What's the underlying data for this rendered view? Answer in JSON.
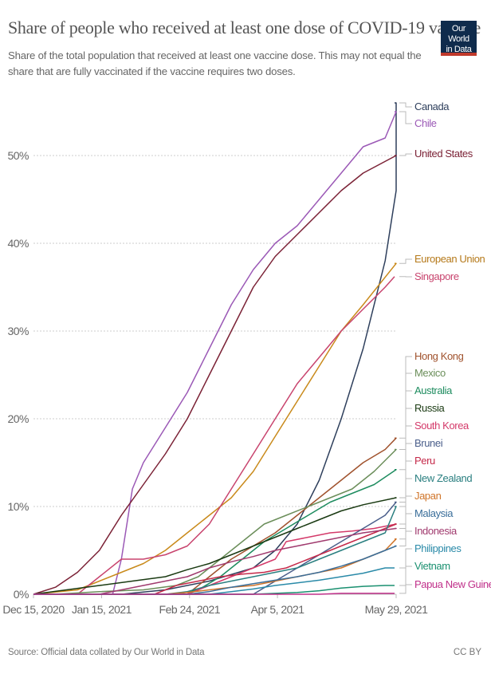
{
  "header": {
    "title": "Share of people who received at least one dose of COVID-19 vaccine",
    "subtitle": "Share of the total population that received at least one vaccine dose. This may not equal the share that are fully vaccinated if the vaccine requires two doses.",
    "logo_line1": "Our World",
    "logo_line2": "in Data"
  },
  "footer": {
    "source": "Source: Official data collated by Our World in Data",
    "license": "CC BY"
  },
  "chart_data": {
    "type": "line",
    "title": "Share of people who received at least one dose of COVID-19 vaccine",
    "xlabel": "",
    "ylabel": "",
    "x_range": [
      "2020-12-15",
      "2021-05-29"
    ],
    "ylim": [
      0,
      56
    ],
    "y_ticks": [
      0,
      10,
      20,
      30,
      40,
      50
    ],
    "y_tick_labels": [
      "0%",
      "10%",
      "20%",
      "30%",
      "40%",
      "50%"
    ],
    "x_ticks": [
      "2020-12-15",
      "2021-01-15",
      "2021-02-24",
      "2021-04-05",
      "2021-05-29"
    ],
    "x_tick_labels": [
      "Dec 15, 2020",
      "Jan 15, 2021",
      "Feb 24, 2021",
      "Apr 5, 2021",
      "May 29, 2021"
    ],
    "grid": "horizontal-dotted",
    "legend": "right-end-labels",
    "series": [
      {
        "name": "Canada",
        "color": "#2e3f5c",
        "points": [
          [
            0,
            0
          ],
          [
            40,
            0
          ],
          [
            60,
            0.5
          ],
          [
            80,
            1.5
          ],
          [
            100,
            3
          ],
          [
            110,
            5
          ],
          [
            120,
            8
          ],
          [
            130,
            13
          ],
          [
            140,
            20
          ],
          [
            150,
            28
          ],
          [
            160,
            38
          ],
          [
            168,
            46
          ],
          [
            175,
            52
          ],
          [
            165.5,
            56
          ]
        ],
        "end": 56
      },
      {
        "name": "Chile",
        "color": "#9b59b6",
        "points": [
          [
            0,
            0
          ],
          [
            36,
            0
          ],
          [
            40,
            4
          ],
          [
            45,
            12
          ],
          [
            50,
            15
          ],
          [
            55,
            17
          ],
          [
            60,
            19
          ],
          [
            70,
            23
          ],
          [
            80,
            28
          ],
          [
            90,
            33
          ],
          [
            100,
            37
          ],
          [
            110,
            40
          ],
          [
            120,
            42
          ],
          [
            130,
            45
          ],
          [
            140,
            48
          ],
          [
            150,
            51
          ],
          [
            160,
            52
          ],
          [
            165,
            55
          ]
        ],
        "end": 55
      },
      {
        "name": "United States",
        "color": "#7b2236",
        "points": [
          [
            0,
            0
          ],
          [
            10,
            0.8
          ],
          [
            20,
            2.5
          ],
          [
            30,
            5
          ],
          [
            40,
            9
          ],
          [
            50,
            12.5
          ],
          [
            60,
            16
          ],
          [
            70,
            20
          ],
          [
            80,
            25
          ],
          [
            90,
            30
          ],
          [
            100,
            35
          ],
          [
            110,
            38.5
          ],
          [
            120,
            41
          ],
          [
            130,
            43.5
          ],
          [
            140,
            46
          ],
          [
            150,
            48
          ],
          [
            165,
            50
          ]
        ],
        "end": 50
      },
      {
        "name": "European Union",
        "color": "#c98a1b",
        "points": [
          [
            0,
            0
          ],
          [
            20,
            0.5
          ],
          [
            30,
            1.5
          ],
          [
            40,
            2.5
          ],
          [
            50,
            3.5
          ],
          [
            60,
            5
          ],
          [
            70,
            7
          ],
          [
            80,
            9
          ],
          [
            90,
            11
          ],
          [
            100,
            14
          ],
          [
            110,
            18
          ],
          [
            120,
            22
          ],
          [
            130,
            26
          ],
          [
            140,
            30
          ],
          [
            150,
            33
          ],
          [
            165,
            37.7
          ]
        ],
        "end": 37.7
      },
      {
        "name": "Singapore",
        "color": "#c8446e",
        "points": [
          [
            0,
            0
          ],
          [
            20,
            0
          ],
          [
            30,
            2
          ],
          [
            40,
            4
          ],
          [
            50,
            4
          ],
          [
            60,
            4.5
          ],
          [
            70,
            5.5
          ],
          [
            80,
            8
          ],
          [
            90,
            12
          ],
          [
            100,
            16
          ],
          [
            110,
            20
          ],
          [
            120,
            24
          ],
          [
            130,
            27
          ],
          [
            140,
            30
          ],
          [
            150,
            32.5
          ],
          [
            160,
            35
          ]
        ],
        "end": 36.2
      },
      {
        "name": "Hong Kong",
        "color": "#a0522d",
        "points": [
          [
            0,
            0
          ],
          [
            70,
            0
          ],
          [
            80,
            2
          ],
          [
            90,
            4
          ],
          [
            100,
            5.5
          ],
          [
            110,
            7
          ],
          [
            120,
            9
          ],
          [
            130,
            11
          ],
          [
            140,
            13
          ],
          [
            150,
            15
          ],
          [
            160,
            16.5
          ],
          [
            165,
            17.8
          ]
        ],
        "end": 17.8
      },
      {
        "name": "Mexico",
        "color": "#6b8e5a",
        "points": [
          [
            0,
            0
          ],
          [
            10,
            0
          ],
          [
            30,
            0.3
          ],
          [
            50,
            0.5
          ],
          [
            65,
            1
          ],
          [
            75,
            2
          ],
          [
            85,
            4
          ],
          [
            95,
            6
          ],
          [
            105,
            8
          ],
          [
            115,
            9
          ],
          [
            125,
            10
          ],
          [
            135,
            11
          ],
          [
            145,
            12
          ],
          [
            155,
            14
          ],
          [
            165,
            16.5
          ]
        ],
        "end": 16.5
      },
      {
        "name": "Australia",
        "color": "#1e8c5f",
        "points": [
          [
            0,
            0
          ],
          [
            65,
            0
          ],
          [
            75,
            0.5
          ],
          [
            85,
            2
          ],
          [
            95,
            4
          ],
          [
            105,
            6
          ],
          [
            115,
            7.5
          ],
          [
            125,
            9
          ],
          [
            135,
            10.5
          ],
          [
            145,
            11.5
          ],
          [
            155,
            12.5
          ],
          [
            165,
            14.2
          ]
        ],
        "end": 14.2
      },
      {
        "name": "Russia",
        "color": "#1a3a12",
        "points": [
          [
            0,
            0
          ],
          [
            15,
            0.5
          ],
          [
            30,
            1
          ],
          [
            45,
            1.5
          ],
          [
            60,
            2
          ],
          [
            70,
            2.8
          ],
          [
            80,
            3.5
          ],
          [
            90,
            4.5
          ],
          [
            100,
            5.5
          ],
          [
            110,
            6.5
          ],
          [
            120,
            7.5
          ],
          [
            130,
            8.5
          ],
          [
            140,
            9.5
          ],
          [
            150,
            10.2
          ],
          [
            165,
            11
          ]
        ],
        "end": 11
      },
      {
        "name": "South Korea",
        "color": "#d43a6a",
        "points": [
          [
            0,
            0
          ],
          [
            70,
            0
          ],
          [
            80,
            1
          ],
          [
            90,
            2
          ],
          [
            100,
            3
          ],
          [
            110,
            4
          ],
          [
            115,
            6
          ],
          [
            125,
            6.5
          ],
          [
            135,
            7
          ],
          [
            145,
            7.2
          ],
          [
            155,
            7.5
          ],
          [
            165,
            8
          ]
        ],
        "end": 8
      },
      {
        "name": "Brunei",
        "color": "#4a5e8a",
        "points": [
          [
            0,
            0
          ],
          [
            100,
            0
          ],
          [
            110,
            1.5
          ],
          [
            120,
            3
          ],
          [
            130,
            4.5
          ],
          [
            140,
            6
          ],
          [
            150,
            7.5
          ],
          [
            160,
            9
          ],
          [
            165,
            10.5
          ]
        ],
        "end": 10.5
      },
      {
        "name": "Peru",
        "color": "#c52a4a",
        "points": [
          [
            0,
            0
          ],
          [
            55,
            0
          ],
          [
            65,
            1
          ],
          [
            75,
            1.5
          ],
          [
            85,
            2
          ],
          [
            95,
            2.3
          ],
          [
            105,
            2.5
          ],
          [
            115,
            3
          ],
          [
            125,
            4
          ],
          [
            135,
            5
          ],
          [
            145,
            6
          ],
          [
            155,
            7
          ],
          [
            165,
            8
          ]
        ],
        "end": 8
      },
      {
        "name": "New Zealand",
        "color": "#2a7f80",
        "points": [
          [
            0,
            0
          ],
          [
            60,
            0
          ],
          [
            70,
            0.3
          ],
          [
            80,
            1
          ],
          [
            90,
            1.5
          ],
          [
            100,
            2
          ],
          [
            110,
            2.5
          ],
          [
            120,
            3
          ],
          [
            130,
            4
          ],
          [
            140,
            5
          ],
          [
            150,
            6
          ],
          [
            160,
            7
          ],
          [
            165,
            10
          ]
        ],
        "end": 10
      },
      {
        "name": "Japan",
        "color": "#d0752a",
        "points": [
          [
            0,
            0
          ],
          [
            60,
            0
          ],
          [
            70,
            0.2
          ],
          [
            80,
            0.5
          ],
          [
            90,
            0.8
          ],
          [
            100,
            1
          ],
          [
            110,
            1.5
          ],
          [
            120,
            2
          ],
          [
            130,
            2.5
          ],
          [
            140,
            3
          ],
          [
            150,
            4
          ],
          [
            160,
            5
          ],
          [
            165,
            6.3
          ]
        ],
        "end": 6.3
      },
      {
        "name": "Malaysia",
        "color": "#3a6e9a",
        "points": [
          [
            0,
            0
          ],
          [
            70,
            0
          ],
          [
            80,
            0.3
          ],
          [
            90,
            0.8
          ],
          [
            100,
            1.2
          ],
          [
            110,
            1.6
          ],
          [
            120,
            2
          ],
          [
            130,
            2.5
          ],
          [
            140,
            3.2
          ],
          [
            150,
            4
          ],
          [
            165,
            5.5
          ]
        ],
        "end": 5.5
      },
      {
        "name": "Indonesia",
        "color": "#a03a6e",
        "points": [
          [
            0,
            0
          ],
          [
            30,
            0
          ],
          [
            40,
            0.5
          ],
          [
            50,
            1
          ],
          [
            60,
            1.5
          ],
          [
            70,
            2
          ],
          [
            80,
            3
          ],
          [
            90,
            3.7
          ],
          [
            100,
            4.3
          ],
          [
            110,
            5
          ],
          [
            120,
            5.5
          ],
          [
            130,
            6
          ],
          [
            140,
            6.5
          ],
          [
            150,
            7
          ],
          [
            165,
            7.5
          ]
        ],
        "end": 7.5
      },
      {
        "name": "Philippines",
        "color": "#2a8aa8",
        "points": [
          [
            0,
            0
          ],
          [
            80,
            0
          ],
          [
            90,
            0.3
          ],
          [
            100,
            0.6
          ],
          [
            110,
            1
          ],
          [
            120,
            1.3
          ],
          [
            130,
            1.6
          ],
          [
            140,
            2
          ],
          [
            150,
            2.4
          ],
          [
            160,
            3
          ]
        ],
        "end": 3
      },
      {
        "name": "Vietnam",
        "color": "#1a9070",
        "points": [
          [
            0,
            0
          ],
          [
            100,
            0
          ],
          [
            110,
            0.1
          ],
          [
            120,
            0.2
          ],
          [
            130,
            0.4
          ],
          [
            140,
            0.7
          ],
          [
            150,
            0.9
          ],
          [
            160,
            1
          ]
        ],
        "end": 1
      },
      {
        "name": "Papua New Guinea",
        "color": "#c0308a",
        "points": [
          [
            0,
            0
          ],
          [
            110,
            0
          ],
          [
            130,
            0
          ],
          [
            140,
            0.1
          ]
        ],
        "end": 0.1
      }
    ],
    "label_colors": {
      "Canada": "#2e3f5c",
      "Chile": "#9b59b6",
      "United States": "#7b2236",
      "European Union": "#b5791a",
      "Singapore": "#c8446e",
      "Hong Kong": "#a0522d",
      "Mexico": "#6b8e5a",
      "Australia": "#1e8c5f",
      "Russia": "#1a3a12",
      "South Korea": "#d43a6a",
      "Brunei": "#4a5e8a",
      "Peru": "#c52a4a",
      "New Zealand": "#2a7f80",
      "Japan": "#d0752a",
      "Malaysia": "#3a6e9a",
      "Indonesia": "#a03a6e",
      "Philippines": "#2a8aa8",
      "Vietnam": "#1a9070",
      "Papua New Guinea": "#c0308a"
    }
  }
}
